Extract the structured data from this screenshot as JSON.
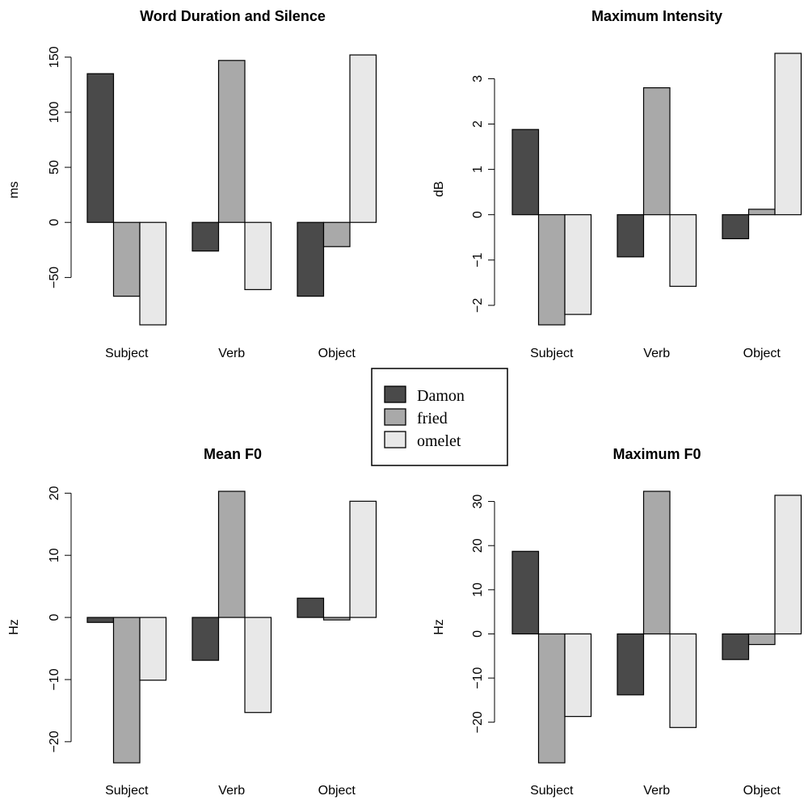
{
  "colors": {
    "Damon": "#4a4a4a",
    "fried": "#a9a9a9",
    "omelet": "#e8e8e8"
  },
  "legend": {
    "entries": [
      "Damon",
      "fried",
      "omelet"
    ]
  },
  "chart_data": [
    {
      "type": "bar",
      "title": "Word Duration and Silence",
      "ylabel": "ms",
      "categories": [
        "Subject",
        "Verb",
        "Object"
      ],
      "series": [
        {
          "name": "Damon",
          "values": [
            135,
            -26,
            -67
          ]
        },
        {
          "name": "fried",
          "values": [
            -67,
            147,
            -22
          ]
        },
        {
          "name": "omelet",
          "values": [
            -93,
            -61,
            152
          ]
        }
      ],
      "yticks": [
        -50,
        0,
        50,
        100,
        150
      ],
      "ylim": [
        -93,
        152
      ]
    },
    {
      "type": "bar",
      "title": "Maximum Intensity",
      "ylabel": "dB",
      "categories": [
        "Subject",
        "Verb",
        "Object"
      ],
      "series": [
        {
          "name": "Damon",
          "values": [
            1.88,
            -0.93,
            -0.53
          ]
        },
        {
          "name": "fried",
          "values": [
            -2.43,
            2.8,
            0.12
          ]
        },
        {
          "name": "omelet",
          "values": [
            -2.2,
            -1.58,
            3.56
          ]
        }
      ],
      "yticks": [
        -2,
        -1,
        0,
        1,
        2,
        3
      ],
      "ylim": [
        -2.43,
        3.56
      ]
    },
    {
      "type": "bar",
      "title": "Mean F0",
      "ylabel": "Hz",
      "categories": [
        "Subject",
        "Verb",
        "Object"
      ],
      "series": [
        {
          "name": "Damon",
          "values": [
            -0.8,
            -6.9,
            3.1
          ]
        },
        {
          "name": "fried",
          "values": [
            -23.4,
            20.3,
            -0.4
          ]
        },
        {
          "name": "omelet",
          "values": [
            -10.1,
            -15.3,
            18.7
          ]
        }
      ],
      "yticks": [
        -20,
        -10,
        0,
        10,
        20
      ],
      "ylim": [
        -23.4,
        20.3
      ]
    },
    {
      "type": "bar",
      "title": "Maximum F0",
      "ylabel": "Hz",
      "categories": [
        "Subject",
        "Verb",
        "Object"
      ],
      "series": [
        {
          "name": "Damon",
          "values": [
            18.7,
            -13.8,
            -5.8
          ]
        },
        {
          "name": "fried",
          "values": [
            -29.2,
            32.3,
            -2.4
          ]
        },
        {
          "name": "omelet",
          "values": [
            -18.7,
            -21.2,
            31.4
          ]
        }
      ],
      "yticks": [
        -20,
        -10,
        0,
        10,
        20,
        30
      ],
      "ylim": [
        -29.2,
        32.3
      ]
    }
  ]
}
